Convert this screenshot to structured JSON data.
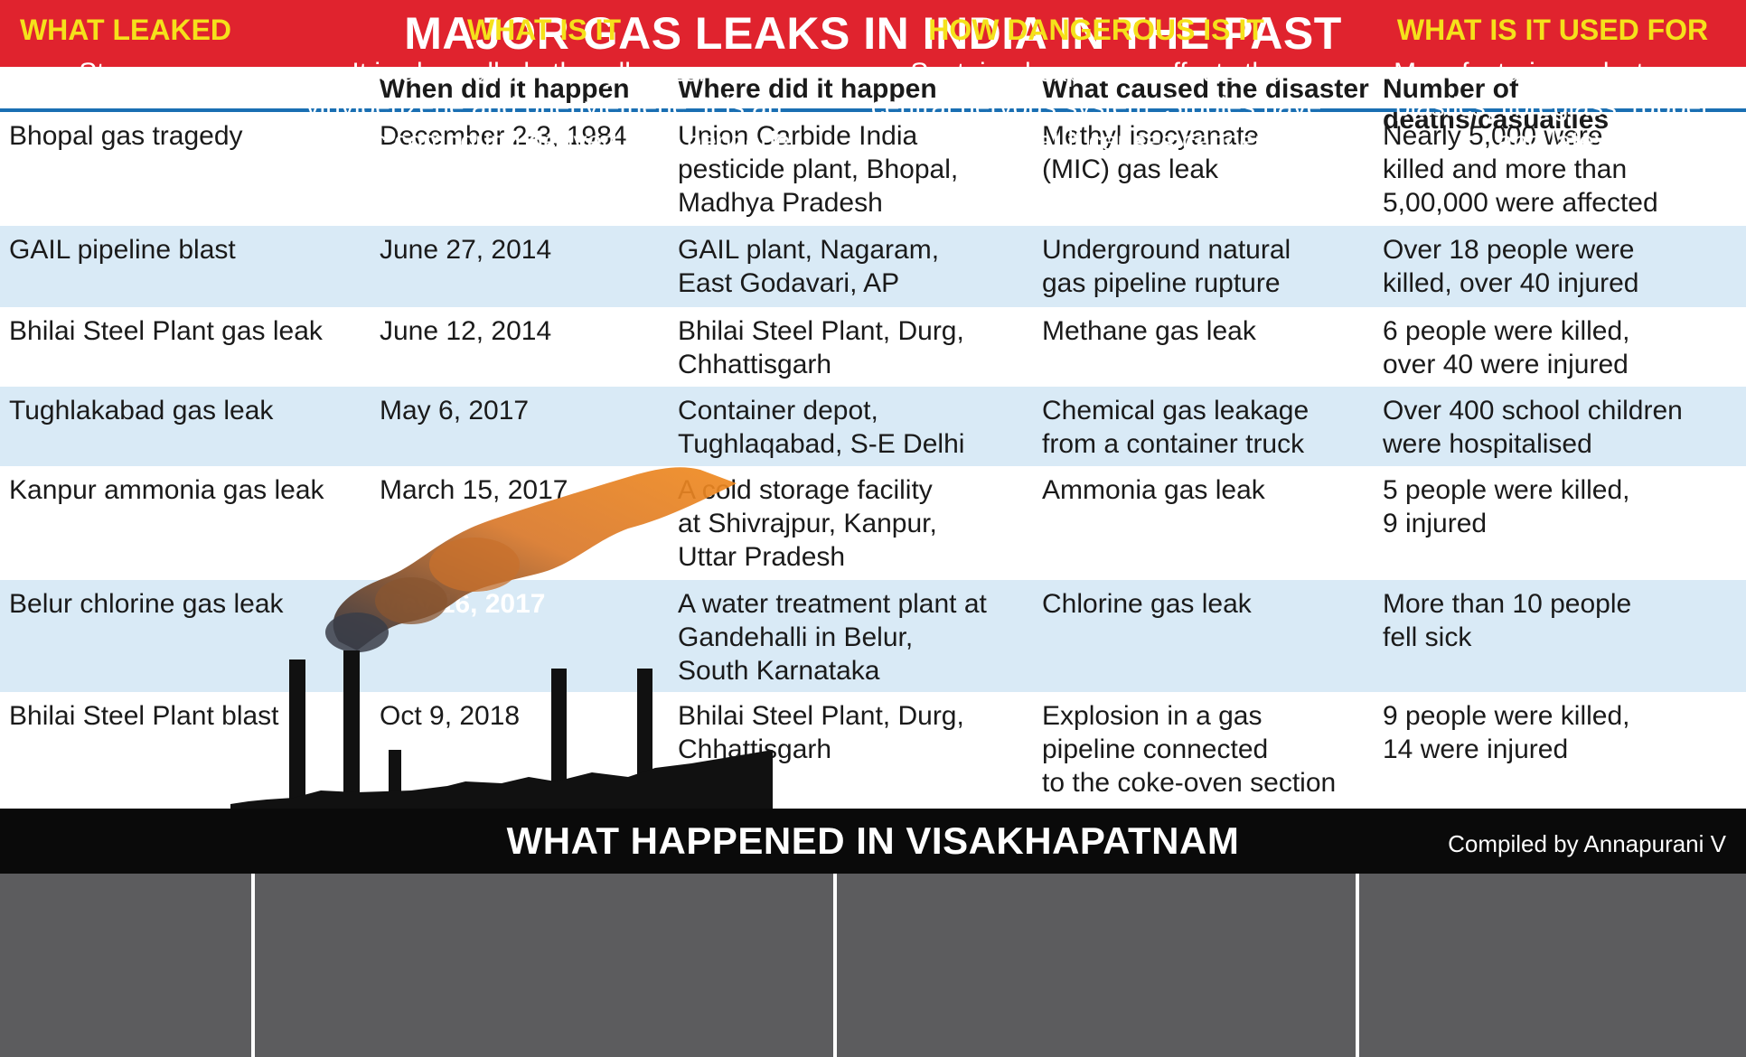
{
  "title": "MAJOR GAS LEAKS IN INDIA IN THE PAST",
  "headers": [
    "",
    "When did it happen",
    "Where did it happen",
    "What caused the disaster",
    "Number of deaths/casualties"
  ],
  "rows": [
    {
      "name": "Bhopal gas tragedy",
      "when": "December 2-3, 1984",
      "where": "Union Carbide India\npesticide plant, Bhopal,\nMadhya Pradesh",
      "cause": "Methyl isocyanate\n(MIC) gas leak",
      "deaths": "Nearly  5,000 were\nkilled and more than\n5,00,000 were affected"
    },
    {
      "name": "GAIL pipeline blast",
      "when": "June 27, 2014",
      "where": "GAIL plant, Nagaram,\nEast Godavari, AP",
      "cause": "Underground natural\ngas pipeline rupture",
      "deaths": "Over 18 people were\nkilled, over 40 injured"
    },
    {
      "name": "Bhilai Steel Plant gas leak",
      "when": "June 12, 2014",
      "where": "Bhilai Steel Plant, Durg,\nChhattisgarh",
      "cause": "Methane gas leak",
      "deaths": "6 people were killed,\nover 40 were injured"
    },
    {
      "name": "Tughlakabad gas leak",
      "when": "May 6, 2017",
      "where": "Container depot,\nTughlaqabad, S-E Delhi",
      "cause": "Chemical gas leakage\nfrom a container truck",
      "deaths": "Over 400 school children\nwere hospitalised"
    },
    {
      "name": "Kanpur ammonia gas leak",
      "when": "March 15, 2017",
      "where": "A cold storage facility\nat Shivrajpur, Kanpur,\nUttar Pradesh",
      "cause": "Ammonia gas leak",
      "deaths": "5 people were killed,\n 9 injured"
    },
    {
      "name": "Belur chlorine gas leak",
      "when": "May 16, 2017",
      "where": "A water treatment plant at\nGandehalli in Belur,\nSouth Karnataka",
      "cause": "Chlorine gas leak",
      "deaths": "More than 10 people\nfell sick"
    },
    {
      "name": "Bhilai Steel Plant blast",
      "when": "Oct 9, 2018",
      "where": "Bhilai Steel Plant, Durg,\nChhattisgarh",
      "cause": "Explosion in a gas\npipeline connected\nto the coke-oven section",
      "deaths": "9 people were killed,\n 14 were injured"
    }
  ],
  "visakhapatnam": {
    "title": "WHAT HAPPENED IN VISAKHAPATNAM",
    "credit": "Compiled by Annapurani V",
    "columns": [
      {
        "heading": "WHAT LEAKED",
        "body": "Styrene"
      },
      {
        "heading": "WHAT IS IT",
        "body": "It is also called ethenylbenzene,\nvinylbenzene and phenylethene. It is an\norganic compound derived from benzene"
      },
      {
        "heading": "HOW DANGEROUS IS IT",
        "body": "Sustained exposure affects the\ncentral nervous system. Studies have\nshown that it causes cancer"
      },
      {
        "heading": "WHAT IS IT USED FOR",
        "body": "Manufacturing polystyrene\nplastics, fibreglass, rubber\nand latex"
      }
    ]
  },
  "colors": {
    "title_bg": "#e0232e",
    "row_alt_bg": "#d9eaf6",
    "info_bg": "#5c5c5e",
    "info_heading": "#f5e11b"
  }
}
